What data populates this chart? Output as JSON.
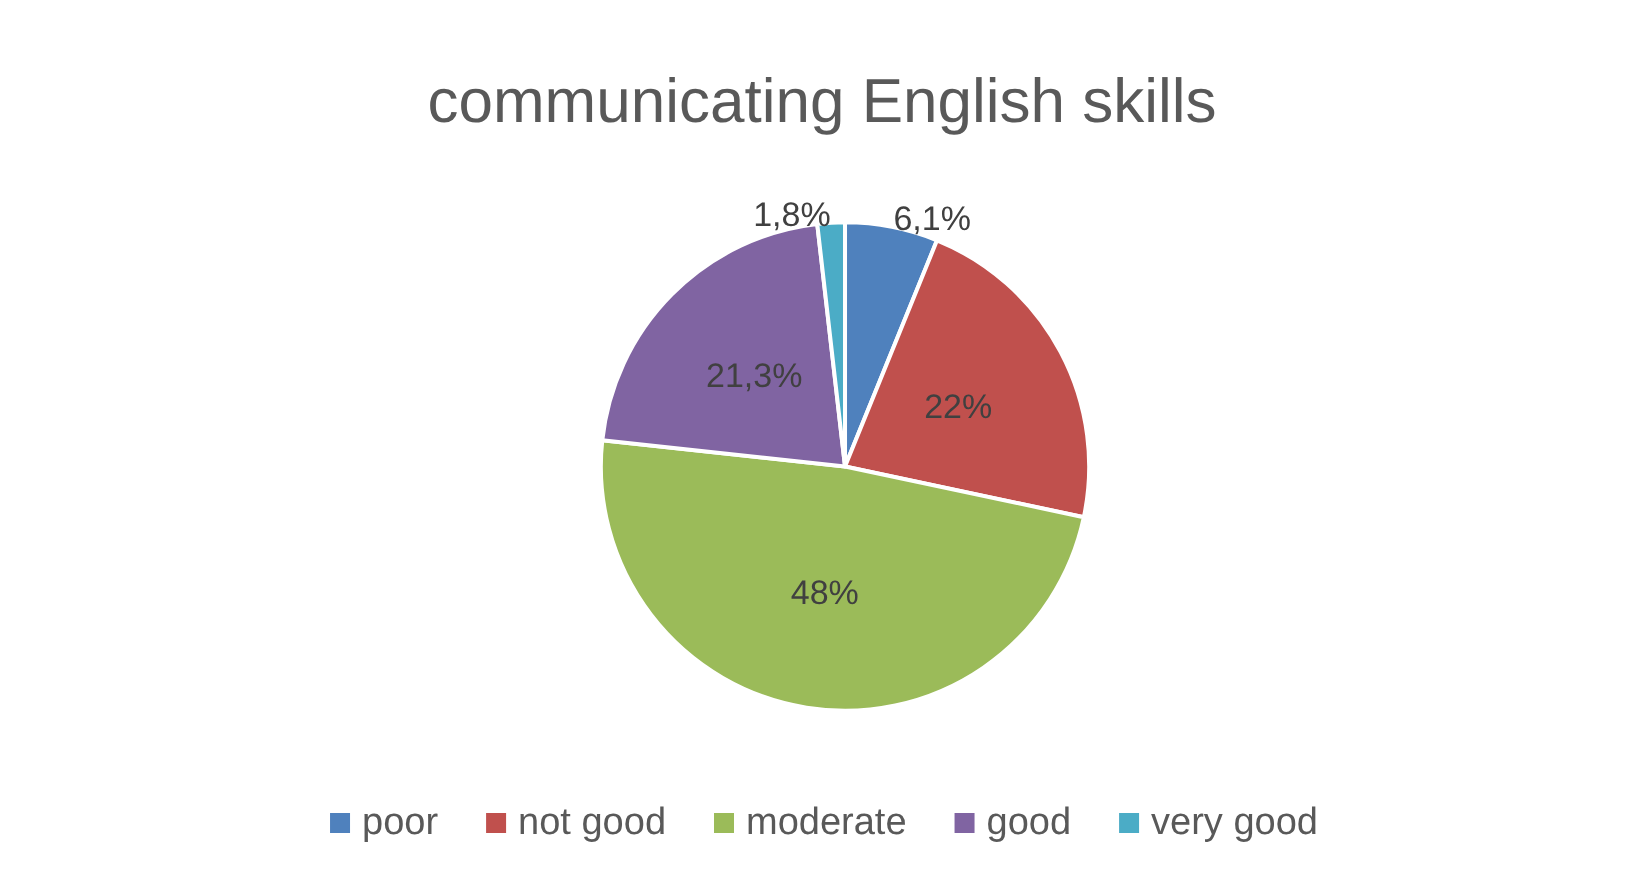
{
  "chart_data": {
    "type": "pie",
    "title": "communicating English skills",
    "categories": [
      "poor",
      "not good",
      "moderate",
      "good",
      "very good"
    ],
    "values": [
      6.1,
      22,
      48,
      21.3,
      1.8
    ],
    "value_labels": [
      "6,1%",
      "22%",
      "48%",
      "21,3%",
      "1,8%"
    ],
    "colors": [
      "#4f81bd",
      "#c0504d",
      "#9bbb59",
      "#8064a2",
      "#4bacc6"
    ],
    "legend": "bottom"
  }
}
